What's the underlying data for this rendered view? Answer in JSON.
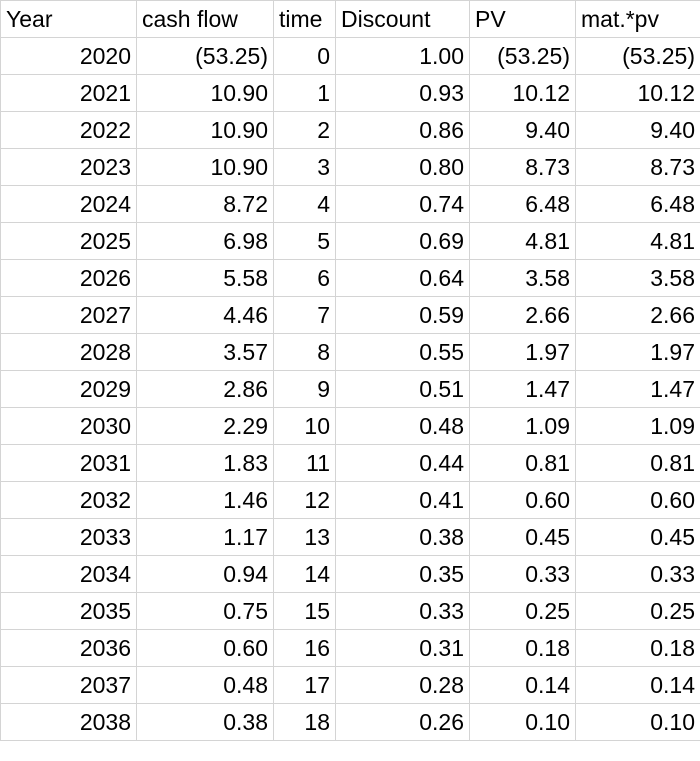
{
  "table": {
    "header": [
      "Year",
      "cash flow",
      "time",
      "Discount",
      "PV",
      "mat.*pv"
    ],
    "rows": [
      [
        "2020",
        "(53.25)",
        "0",
        "1.00",
        "(53.25)",
        "(53.25)"
      ],
      [
        "2021",
        "10.90",
        "1",
        "0.93",
        "10.12",
        "10.12"
      ],
      [
        "2022",
        "10.90",
        "2",
        "0.86",
        "9.40",
        "9.40"
      ],
      [
        "2023",
        "10.90",
        "3",
        "0.80",
        "8.73",
        "8.73"
      ],
      [
        "2024",
        "8.72",
        "4",
        "0.74",
        "6.48",
        "6.48"
      ],
      [
        "2025",
        "6.98",
        "5",
        "0.69",
        "4.81",
        "4.81"
      ],
      [
        "2026",
        "5.58",
        "6",
        "0.64",
        "3.58",
        "3.58"
      ],
      [
        "2027",
        "4.46",
        "7",
        "0.59",
        "2.66",
        "2.66"
      ],
      [
        "2028",
        "3.57",
        "8",
        "0.55",
        "1.97",
        "1.97"
      ],
      [
        "2029",
        "2.86",
        "9",
        "0.51",
        "1.47",
        "1.47"
      ],
      [
        "2030",
        "2.29",
        "10",
        "0.48",
        "1.09",
        "1.09"
      ],
      [
        "2031",
        "1.83",
        "11",
        "0.44",
        "0.81",
        "0.81"
      ],
      [
        "2032",
        "1.46",
        "12",
        "0.41",
        "0.60",
        "0.60"
      ],
      [
        "2033",
        "1.17",
        "13",
        "0.38",
        "0.45",
        "0.45"
      ],
      [
        "2034",
        "0.94",
        "14",
        "0.35",
        "0.33",
        "0.33"
      ],
      [
        "2035",
        "0.75",
        "15",
        "0.33",
        "0.25",
        "0.25"
      ],
      [
        "2036",
        "0.60",
        "16",
        "0.31",
        "0.18",
        "0.18"
      ],
      [
        "2037",
        "0.48",
        "17",
        "0.28",
        "0.14",
        "0.14"
      ],
      [
        "2038",
        "0.38",
        "18",
        "0.26",
        "0.10",
        "0.10"
      ]
    ]
  }
}
